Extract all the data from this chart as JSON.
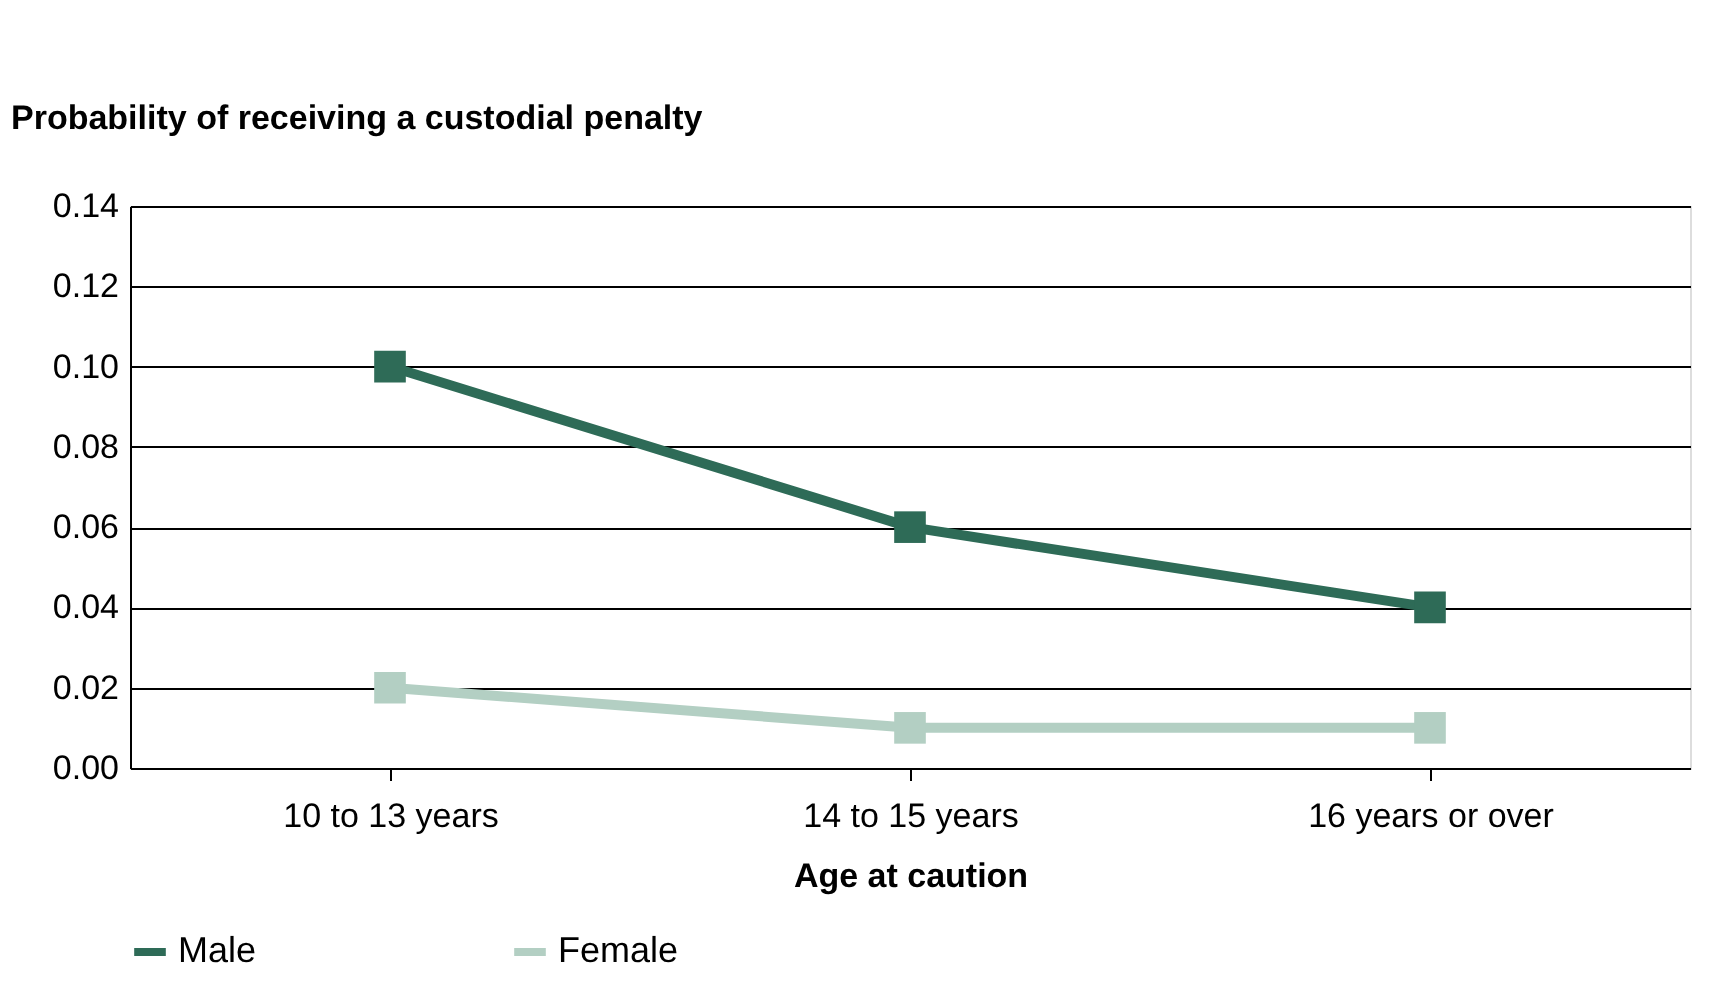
{
  "chart_data": {
    "type": "line",
    "ylabel": "Probability of receiving a custodial penalty",
    "xlabel": "Age at caution",
    "categories": [
      "10 to 13 years",
      "14 to 15 years",
      "16 years or over"
    ],
    "series": [
      {
        "name": "Male",
        "color": "#2e6b57",
        "values": [
          0.1,
          0.06,
          0.04
        ]
      },
      {
        "name": "Female",
        "color": "#b3cfc3",
        "values": [
          0.02,
          0.01,
          0.01
        ]
      }
    ],
    "ylim": [
      0,
      0.14
    ],
    "yticks": [
      {
        "value": 0,
        "label": "0.00"
      },
      {
        "value": 0.02,
        "label": "0.02"
      },
      {
        "value": 0.04,
        "label": "0.04"
      },
      {
        "value": 0.06,
        "label": "0.06"
      },
      {
        "value": 0.08,
        "label": "0.08"
      },
      {
        "value": 0.1,
        "label": "0.10"
      },
      {
        "value": 0.12,
        "label": "0.12"
      },
      {
        "value": 0.14,
        "label": "0.14"
      }
    ],
    "grid": "y",
    "legend": "bottom",
    "marker": "square",
    "line_style": "solid"
  }
}
